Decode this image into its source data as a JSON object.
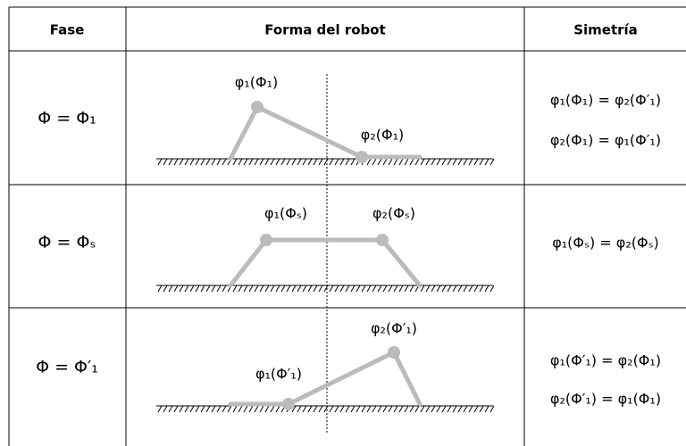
{
  "header": [
    "Fase",
    "Forma del robot",
    "Simetría"
  ],
  "rows": [
    {
      "fase": "Φ = Φ₁",
      "labels": [
        "φ₁(Φ₁)",
        "φ₂(Φ₁)"
      ],
      "symmetry": [
        "φ₁(Φ₁) = φ₂(Φ′₁)",
        "φ₂(Φ₁) = φ₁(Φ′₁)"
      ]
    },
    {
      "fase": "Φ = Φₛ",
      "labels": [
        "φ₁(Φₛ)",
        "φ₂(Φₛ)"
      ],
      "symmetry": [
        "φ₁(Φₛ) = φ₂(Φₛ)"
      ]
    },
    {
      "fase": "Φ = Φ′₁",
      "labels": [
        "φ₁(Φ′₁)",
        "φ₂(Φ′₁)"
      ],
      "symmetry": [
        "φ₁(Φ′₁) = φ₂(Φ₁)",
        "φ₂(Φ′₁) = φ₁(Φ₁)"
      ]
    }
  ]
}
